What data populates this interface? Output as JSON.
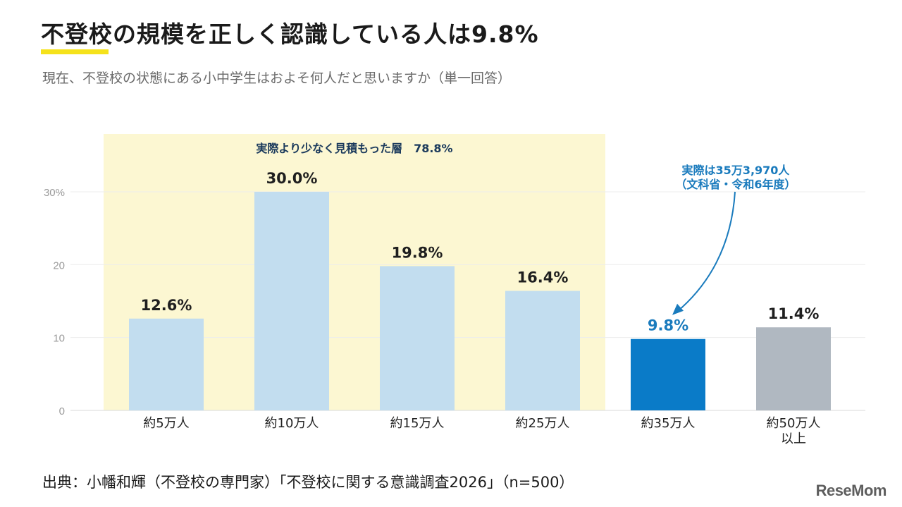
{
  "title": "不登校の規模を正しく認識している人は9.8%",
  "subtitle": "現在、不登校の状態にある小中学生はおよそ何人だと思いますか（単一回答）",
  "source": "出典：小幡和輝（不登校の専門家）「不登校に関する意識調査2026」（n=500）",
  "logo": "ReseMom",
  "colors": {
    "bar_default": "#c2ddef",
    "bar_highlight": "#0a7bc8",
    "bar_other": "#b0b8c1",
    "band": "#fcf7d2",
    "annotation_blue": "#1a7bbd",
    "band_label": "#1b3a5c",
    "title_underline": "#f5e21b"
  },
  "chart_data": {
    "type": "bar",
    "categories": [
      [
        "約5万人"
      ],
      [
        "約10万人"
      ],
      [
        "約15万人"
      ],
      [
        "約25万人"
      ],
      [
        "約35万人"
      ],
      [
        "約50万人",
        "以上"
      ]
    ],
    "values": [
      12.6,
      30.0,
      19.8,
      16.4,
      9.8,
      11.4
    ],
    "value_labels": [
      "12.6%",
      "30.0%",
      "19.8%",
      "16.4%",
      "9.8%",
      "11.4%"
    ],
    "bar_styles": [
      "default",
      "default",
      "default",
      "default",
      "highlight",
      "other"
    ],
    "yticks": [
      0,
      10,
      20,
      30
    ],
    "ytick_labels": [
      "0",
      "10",
      "20",
      "30%"
    ],
    "ylim": [
      0,
      30
    ],
    "grid": true,
    "band": {
      "from_category": 0,
      "to_category": 3,
      "label": "実際より少なく見積もった層　78.8%"
    },
    "annotation": {
      "lines": [
        "実際は35万3,970人",
        "（文科省・令和6年度）"
      ],
      "target_category": 4
    }
  }
}
